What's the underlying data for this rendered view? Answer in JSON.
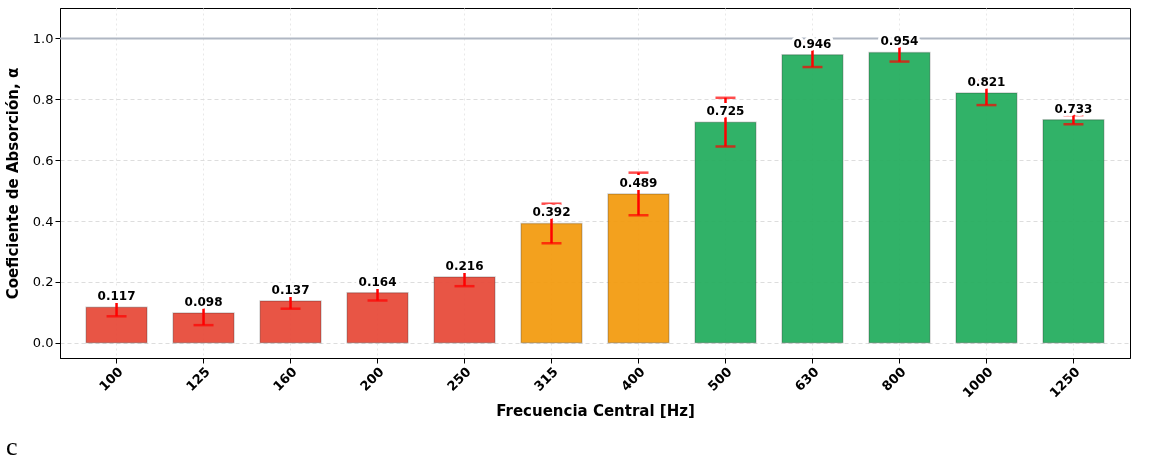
{
  "chart_data": {
    "type": "bar",
    "xlabel": "Frecuencia Central [Hz]",
    "ylabel": "Coeficiente de Absorción, α",
    "categories": [
      "100",
      "125",
      "160",
      "200",
      "250",
      "315",
      "400",
      "500",
      "630",
      "800",
      "1000",
      "1250"
    ],
    "values": [
      0.117,
      0.098,
      0.137,
      0.164,
      0.216,
      0.392,
      0.489,
      0.725,
      0.946,
      0.954,
      0.821,
      0.733
    ],
    "errors": [
      0.03,
      0.04,
      0.025,
      0.025,
      0.03,
      0.065,
      0.07,
      0.08,
      0.04,
      0.03,
      0.04,
      0.015
    ],
    "colors": [
      "#e74c3c",
      "#e74c3c",
      "#e74c3c",
      "#e74c3c",
      "#e74c3c",
      "#f39c12",
      "#f39c12",
      "#27ae60",
      "#27ae60",
      "#27ae60",
      "#27ae60",
      "#27ae60"
    ],
    "ylim": [
      -0.05,
      1.1
    ],
    "yticks": [
      {
        "value": 0,
        "label": "0.0"
      },
      {
        "value": 0.2,
        "label": "0.2"
      },
      {
        "value": 0.4,
        "label": "0.4"
      },
      {
        "value": 0.6,
        "label": "0.6"
      },
      {
        "value": 0.8,
        "label": "0.8"
      },
      {
        "value": 1.0,
        "label": "1.0"
      }
    ],
    "ref_lines": [
      {
        "axis": "y",
        "value": 1.0,
        "color": "#b0b7c3"
      }
    ],
    "grid": true,
    "data_labels": true,
    "annotations": [
      "c"
    ]
  }
}
